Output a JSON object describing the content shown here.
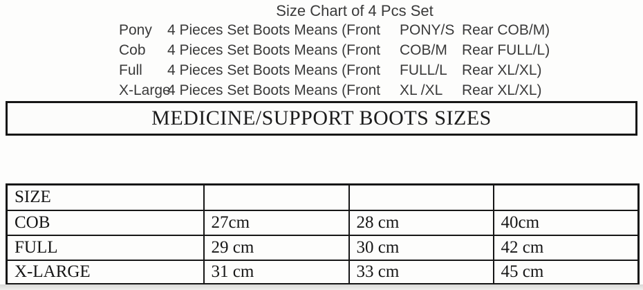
{
  "title": "Size Chart of 4 Pcs Set",
  "set_description_lines": [
    {
      "name": "Pony",
      "desc": "4 Pieces Set Boots Means (Front",
      "front_size": "PONY/S",
      "rear_size": "Rear COB/M)"
    },
    {
      "name": "Cob",
      "desc": "4 Pieces Set Boots Means (Front",
      "front_size": "COB/M",
      "rear_size": "Rear FULL/L)"
    },
    {
      "name": "Full",
      "desc": "4 Pieces Set Boots Means (Front",
      "front_size": "FULL/L",
      "rear_size": "Rear XL/XL)"
    },
    {
      "name": "X-Large",
      "desc": "4 Pieces Set Boots Means (Front",
      "front_size": "XL /XL",
      "rear_size": "Rear XL/XL)"
    }
  ],
  "banner": "MEDICINE/SUPPORT BOOTS SIZES",
  "chart_data": {
    "type": "table",
    "title": "MEDICINE/SUPPORT BOOTS SIZES",
    "columns": [
      "SIZE",
      "",
      "",
      ""
    ],
    "rows": [
      [
        "COB",
        "27cm",
        "28 cm",
        "40cm"
      ],
      [
        "FULL",
        "29 cm",
        "30 cm",
        "42 cm"
      ],
      [
        "X-LARGE",
        "31 cm",
        "33 cm",
        "45 cm"
      ]
    ]
  },
  "colors": {
    "background": "#fdfdfc",
    "sans_text": "#3a3a3a",
    "serif_text": "#1c1c1c",
    "border": "#161616"
  }
}
